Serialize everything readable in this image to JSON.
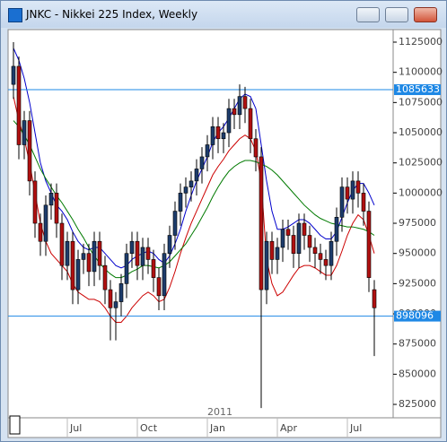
{
  "window_title": "JNKC - Nikkei 225 Index, Weekly",
  "chart_data": {
    "type": "candlestick",
    "categories": [
      null,
      null,
      null,
      null,
      null,
      null,
      null,
      null,
      null,
      null,
      "Jul",
      null,
      null,
      null,
      null,
      null,
      null,
      null,
      null,
      null,
      null,
      null,
      null,
      "Oct",
      null,
      null,
      null,
      null,
      null,
      null,
      null,
      null,
      null,
      null,
      null,
      null,
      "Jan",
      null,
      null,
      null,
      null,
      null,
      null,
      null,
      null,
      null,
      null,
      null,
      null,
      "Apr",
      null,
      null,
      null,
      null,
      null,
      null,
      null,
      null,
      null,
      null,
      null,
      null,
      "Jul",
      null,
      null,
      null,
      null,
      null
    ],
    "year_label": "2011",
    "open": [
      1090000,
      1105000,
      1040000,
      1060000,
      1010000,
      975000,
      960000,
      990000,
      1000000,
      975000,
      940000,
      960000,
      920000,
      945000,
      950000,
      935000,
      960000,
      940000,
      920000,
      905000,
      910000,
      925000,
      950000,
      960000,
      940000,
      955000,
      945000,
      930000,
      915000,
      950000,
      965000,
      985000,
      1000000,
      1005000,
      1010000,
      1020000,
      1030000,
      1040000,
      1055000,
      1045000,
      1050000,
      1070000,
      1065000,
      1080000,
      1070000,
      1045000,
      1030000,
      920000,
      960000,
      945000,
      955000,
      970000,
      965000,
      950000,
      975000,
      965000,
      955000,
      950000,
      945000,
      940000,
      960000,
      980000,
      1005000,
      995000,
      1010000,
      1000000,
      985000,
      920000
    ],
    "high": [
      1125000,
      1113000,
      1068000,
      1068000,
      1018000,
      983000,
      998000,
      1008000,
      1008000,
      983000,
      968000,
      968000,
      953000,
      958000,
      958000,
      968000,
      968000,
      948000,
      928000,
      918000,
      933000,
      958000,
      968000,
      968000,
      963000,
      963000,
      953000,
      938000,
      958000,
      973000,
      993000,
      1008000,
      1013000,
      1018000,
      1028000,
      1038000,
      1048000,
      1063000,
      1063000,
      1058000,
      1078000,
      1078000,
      1090000,
      1088000,
      1078000,
      1053000,
      1038000,
      968000,
      968000,
      963000,
      978000,
      978000,
      973000,
      983000,
      983000,
      973000,
      963000,
      958000,
      953000,
      968000,
      988000,
      1013000,
      1013000,
      1018000,
      1018000,
      1008000,
      993000,
      928000
    ],
    "low": [
      1078000,
      1028000,
      1028000,
      998000,
      963000,
      948000,
      948000,
      978000,
      963000,
      928000,
      928000,
      908000,
      908000,
      933000,
      923000,
      923000,
      928000,
      908000,
      878000,
      878000,
      898000,
      913000,
      938000,
      928000,
      928000,
      933000,
      918000,
      903000,
      903000,
      938000,
      953000,
      973000,
      988000,
      993000,
      998000,
      1008000,
      1018000,
      1028000,
      1033000,
      1033000,
      1038000,
      1053000,
      1053000,
      1058000,
      1033000,
      1018000,
      822000,
      908000,
      933000,
      933000,
      943000,
      953000,
      938000,
      938000,
      953000,
      943000,
      938000,
      933000,
      928000,
      928000,
      948000,
      968000,
      983000,
      983000,
      988000,
      973000,
      918000,
      865000
    ],
    "close": [
      1105000,
      1040000,
      1060000,
      1010000,
      975000,
      960000,
      990000,
      1000000,
      975000,
      940000,
      960000,
      920000,
      945000,
      950000,
      935000,
      960000,
      940000,
      920000,
      905000,
      910000,
      925000,
      950000,
      960000,
      940000,
      955000,
      945000,
      930000,
      915000,
      950000,
      965000,
      985000,
      1000000,
      1005000,
      1010000,
      1020000,
      1030000,
      1040000,
      1055000,
      1045000,
      1050000,
      1070000,
      1065000,
      1080000,
      1070000,
      1045000,
      1030000,
      920000,
      960000,
      945000,
      955000,
      970000,
      965000,
      950000,
      975000,
      965000,
      955000,
      950000,
      945000,
      940000,
      960000,
      980000,
      1005000,
      995000,
      1010000,
      1000000,
      985000,
      930000,
      905000
    ],
    "up_color": "#1d3c6b",
    "down_color": "#b01010",
    "series": [
      {
        "color": "#0000cc",
        "values": [
          1120000,
          1110000,
          1095000,
          1075000,
          1050000,
          1025000,
          1010000,
          1000000,
          990000,
          985000,
          978000,
          968000,
          960000,
          955000,
          953000,
          955000,
          955000,
          950000,
          945000,
          940000,
          938000,
          940000,
          945000,
          948000,
          950000,
          952000,
          950000,
          945000,
          942000,
          948000,
          958000,
          970000,
          985000,
          998000,
          1010000,
          1020000,
          1030000,
          1042000,
          1050000,
          1055000,
          1062000,
          1070000,
          1078000,
          1082000,
          1080000,
          1070000,
          1040000,
          1010000,
          985000,
          970000,
          970000,
          972000,
          975000,
          978000,
          978000,
          975000,
          970000,
          965000,
          962000,
          962000,
          968000,
          980000,
          992000,
          1002000,
          1008000,
          1008000,
          1000000,
          990000
        ]
      },
      {
        "color": "#cc0000",
        "values": [
          1080000,
          1060000,
          1045000,
          1025000,
          1000000,
          975000,
          960000,
          950000,
          945000,
          940000,
          935000,
          925000,
          918000,
          915000,
          912000,
          912000,
          910000,
          905000,
          898000,
          893000,
          893000,
          898000,
          905000,
          910000,
          915000,
          918000,
          915000,
          910000,
          912000,
          922000,
          935000,
          950000,
          963000,
          975000,
          985000,
          995000,
          1005000,
          1015000,
          1022000,
          1028000,
          1035000,
          1040000,
          1045000,
          1048000,
          1045000,
          1035000,
          1010000,
          945000,
          925000,
          915000,
          918000,
          925000,
          932000,
          938000,
          940000,
          940000,
          938000,
          935000,
          932000,
          932000,
          940000,
          952000,
          965000,
          975000,
          982000,
          978000,
          965000,
          950000
        ]
      },
      {
        "color": "#007a00",
        "values": [
          1060000,
          1055000,
          1048000,
          1040000,
          1030000,
          1020000,
          1012000,
          1005000,
          998000,
          992000,
          985000,
          978000,
          970000,
          963000,
          955000,
          948000,
          942000,
          937000,
          933000,
          930000,
          930000,
          932000,
          935000,
          937000,
          940000,
          940000,
          939000,
          938000,
          940000,
          943000,
          948000,
          953000,
          958000,
          965000,
          972000,
          980000,
          988000,
          997000,
          1005000,
          1012000,
          1018000,
          1022000,
          1025000,
          1027000,
          1027000,
          1026000,
          1024000,
          1022000,
          1019000,
          1015000,
          1010000,
          1005000,
          1000000,
          995000,
          990000,
          986000,
          982000,
          979000,
          977000,
          975000,
          974000,
          973000,
          972000,
          972000,
          971000,
          970000,
          968000,
          965000
        ]
      }
    ],
    "hlines": [
      1085633,
      898096
    ],
    "hline_color": "#1e88e5",
    "ylim": [
      813900,
      1135400
    ],
    "yticks": [
      825000,
      850000,
      875000,
      900000,
      925000,
      950000,
      975000,
      1000000,
      1025000,
      1050000,
      1075000,
      1100000,
      1125000
    ]
  }
}
